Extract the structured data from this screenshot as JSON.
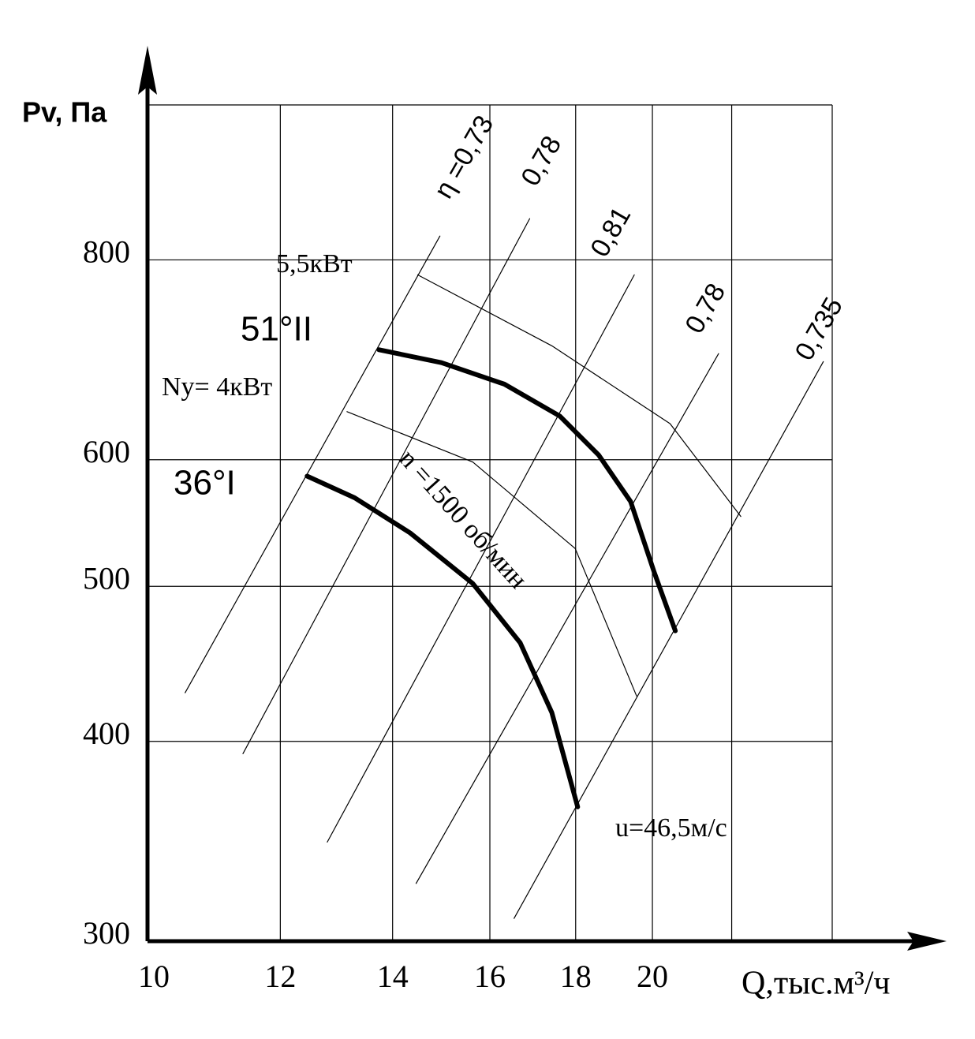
{
  "chart_data": {
    "type": "line",
    "y_label": "Pv, Па",
    "x_label": "Q,тыс.м³/ч",
    "log_x": true,
    "log_y": true,
    "grid": true,
    "xlim": [
      10,
      25.6
    ],
    "ylim": [
      300,
      1000
    ],
    "xticks": [
      10,
      12,
      14,
      16,
      18,
      20
    ],
    "yticks": [
      300,
      400,
      500,
      600,
      800
    ],
    "minor_xgrid": [
      22.3
    ],
    "series": [
      {
        "name": "51°II",
        "color": "#000000",
        "x": [
          13.74,
          14.97,
          16.32,
          17.61,
          18.58,
          19.41,
          20.04,
          20.64
        ],
        "values": [
          703,
          690,
          669,
          639,
          604,
          565,
          511,
          469
        ]
      },
      {
        "name": "36°I",
        "color": "#000000",
        "x": [
          12.45,
          13.29,
          14.34,
          15.63,
          16.68,
          17.42,
          18.05
        ],
        "values": [
          586,
          568,
          540,
          502,
          461,
          417,
          364
        ]
      }
    ],
    "efficiency_lines": [
      {
        "label": "η =0,73",
        "x": [
          10.53,
          14.94
        ],
        "values": [
          429,
          828
        ]
      },
      {
        "label": "0,78",
        "x": [
          11.4,
          16.9
        ],
        "values": [
          393,
          849
        ]
      },
      {
        "label": "0,81",
        "x": [
          12.8,
          19.51
        ],
        "values": [
          346,
          783
        ]
      },
      {
        "label": "0,78",
        "x": [
          14.46,
          21.9
        ],
        "values": [
          326,
          699
        ]
      },
      {
        "label": "0,735",
        "x": [
          16.54,
          25.29
        ],
        "values": [
          310,
          691
        ]
      }
    ],
    "power_lines": [
      {
        "label": "5,5кВт",
        "x": [
          14.49,
          17.42,
          20.49,
          22.58
        ],
        "values": [
          783,
          707,
          632,
          553
        ]
      },
      {
        "label": "Ny= 4кВт",
        "x": [
          13.15,
          15.63,
          17.99,
          19.57
        ],
        "values": [
          643,
          598,
          528,
          427
        ]
      }
    ],
    "annotations": [
      "n =1500 об/мин",
      "u=46,5м/с"
    ]
  }
}
